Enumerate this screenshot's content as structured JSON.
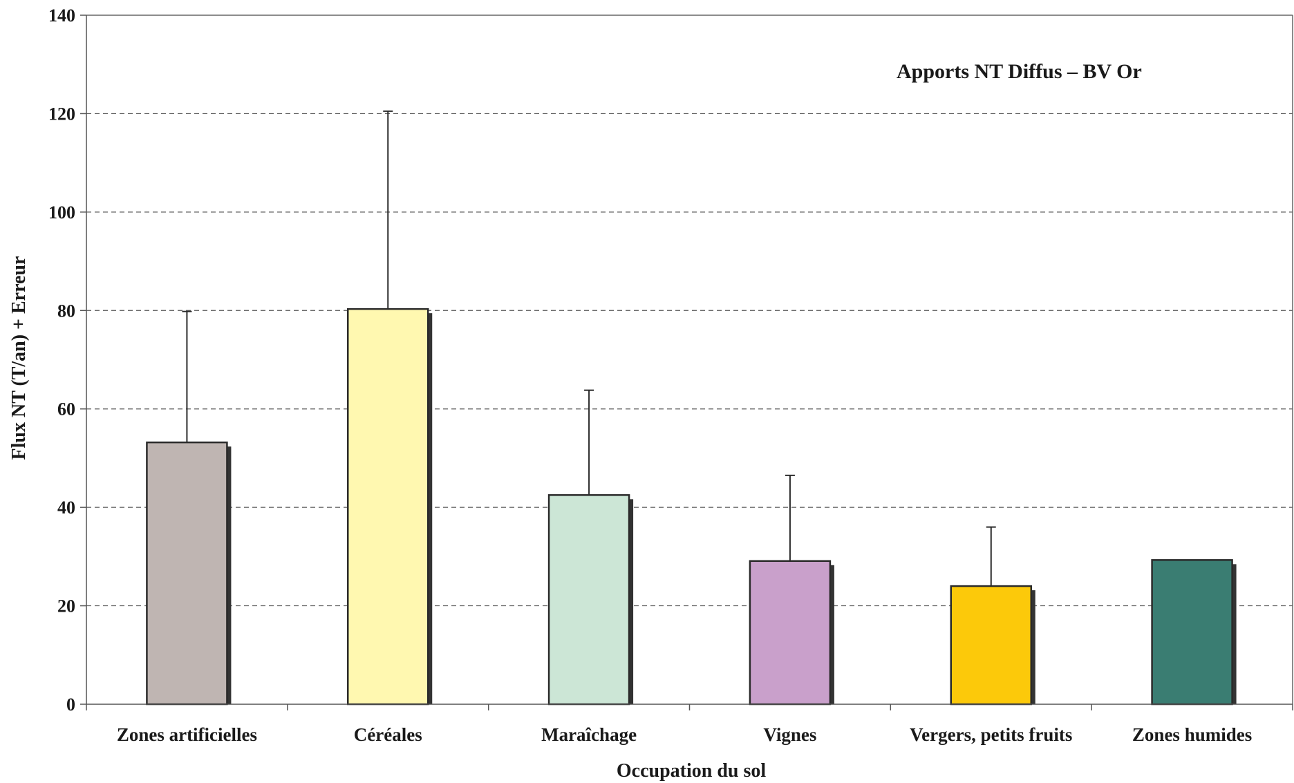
{
  "chart_data": {
    "type": "bar",
    "title": "Apports NT Diffus – BV Or",
    "xlabel": "Occupation du sol",
    "ylabel": "Flux NT (T/an) + Erreur",
    "categories": [
      "Zones artificielles",
      "Céréales",
      "Maraîchage",
      "Vignes",
      "Vergers, petits fruits",
      "Zones humides"
    ],
    "values": [
      53.2,
      80.3,
      42.5,
      29.1,
      24.0,
      29.3
    ],
    "error_upper": [
      79.8,
      120.5,
      63.8,
      46.5,
      36.0,
      29.3
    ],
    "colors": [
      "#bfb5b2",
      "#fff8b0",
      "#cce6d6",
      "#c9a0cb",
      "#fcc90a",
      "#3a7d72"
    ],
    "ylim": [
      0,
      140
    ],
    "yticks": [
      0,
      20,
      40,
      60,
      80,
      100,
      120,
      140
    ],
    "grid": true,
    "legend": "none"
  }
}
